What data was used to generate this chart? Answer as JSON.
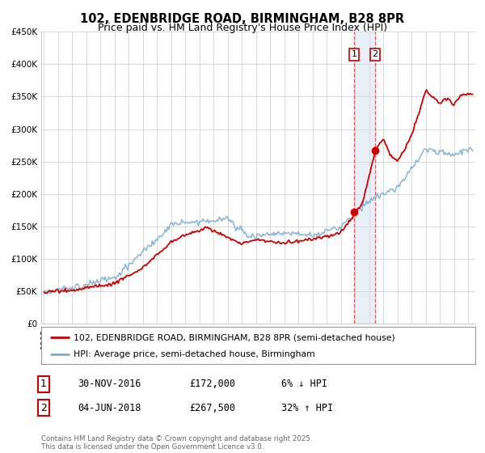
{
  "title": "102, EDENBRIDGE ROAD, BIRMINGHAM, B28 8PR",
  "subtitle": "Price paid vs. HM Land Registry's House Price Index (HPI)",
  "title_fontsize": 10.5,
  "subtitle_fontsize": 9,
  "background_color": "#ffffff",
  "grid_color": "#cccccc",
  "ylim": [
    0,
    450000
  ],
  "yticks": [
    0,
    50000,
    100000,
    150000,
    200000,
    250000,
    300000,
    350000,
    400000,
    450000
  ],
  "ytick_labels": [
    "£0",
    "£50K",
    "£100K",
    "£150K",
    "£200K",
    "£250K",
    "£300K",
    "£350K",
    "£400K",
    "£450K"
  ],
  "xlim_start": 1994.8,
  "xlim_end": 2025.5,
  "hpi_color": "#7aadd4",
  "price_color": "#cc0000",
  "marker_color": "#cc0000",
  "vline1_x": 2016.92,
  "vline2_x": 2018.42,
  "vline_color": "#dd4444",
  "shade_color": "#ccdded",
  "shade_alpha": 0.45,
  "marker1_x": 2016.92,
  "marker1_y": 172000,
  "marker2_x": 2018.42,
  "marker2_y": 267500,
  "legend_label_price": "102, EDENBRIDGE ROAD, BIRMINGHAM, B28 8PR (semi-detached house)",
  "legend_label_hpi": "HPI: Average price, semi-detached house, Birmingham",
  "footnote": "Contains HM Land Registry data © Crown copyright and database right 2025.\nThis data is licensed under the Open Government Licence v3.0.",
  "table_row1": [
    "1",
    "30-NOV-2016",
    "£172,000",
    "6% ↓ HPI"
  ],
  "table_row2": [
    "2",
    "04-JUN-2018",
    "£267,500",
    "32% ↑ HPI"
  ]
}
